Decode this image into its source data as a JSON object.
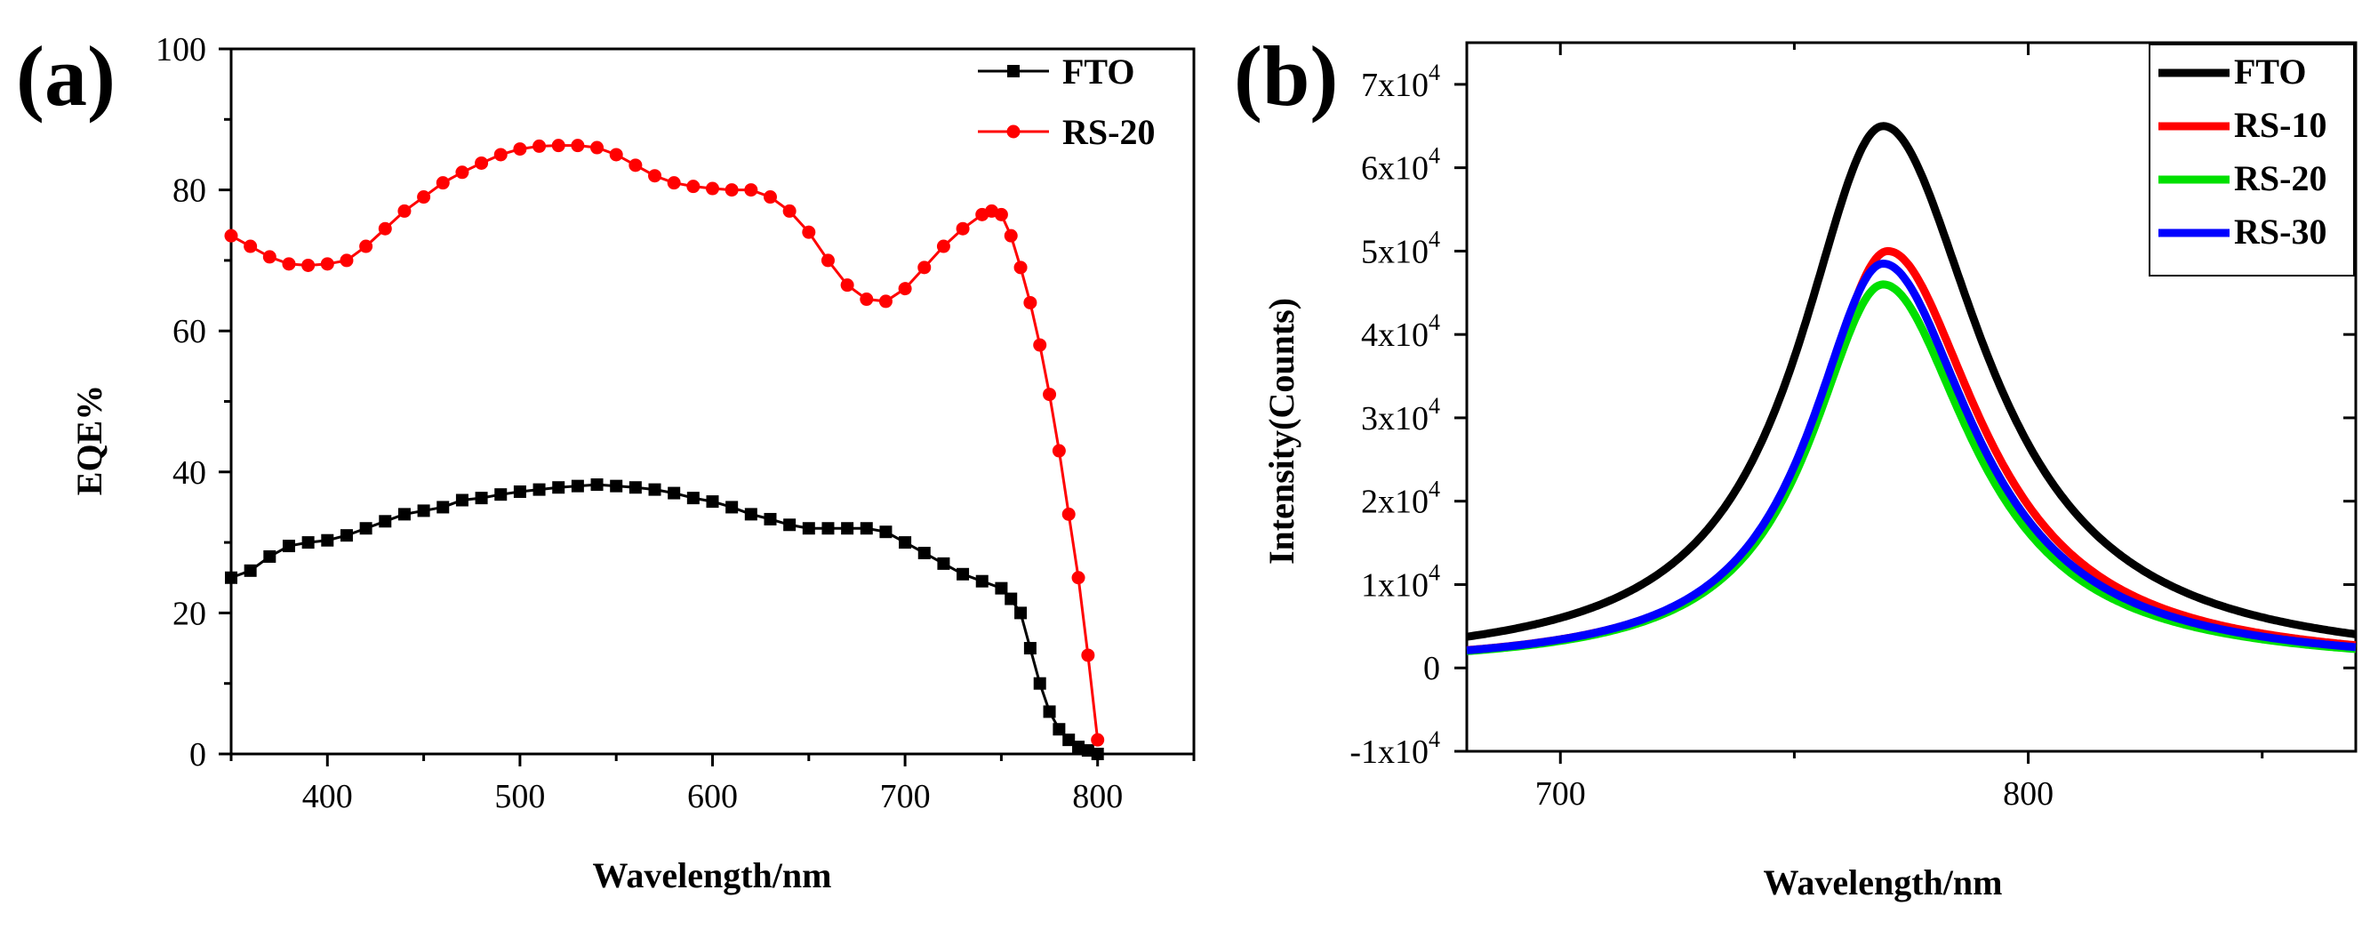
{
  "chart_data": [
    {
      "panel_label": "(a)",
      "type": "line",
      "xlabel": "Wavelength/nm",
      "ylabel": "EQE%",
      "xlim": [
        350,
        850
      ],
      "ylim": [
        0,
        100
      ],
      "xticks": [
        400,
        500,
        600,
        700,
        800
      ],
      "yticks": [
        0,
        20,
        40,
        60,
        80,
        100
      ],
      "tick_labels_x": [
        "400",
        "500",
        "600",
        "700",
        "800"
      ],
      "tick_labels_y": [
        "0",
        "20",
        "40",
        "60",
        "80",
        "100"
      ],
      "legend_position": "top-right",
      "series": [
        {
          "name": "FTO",
          "color": "#000000",
          "marker": "square",
          "x": [
            350,
            360,
            370,
            380,
            390,
            400,
            410,
            420,
            430,
            440,
            450,
            460,
            470,
            480,
            490,
            500,
            510,
            520,
            530,
            540,
            550,
            560,
            570,
            580,
            590,
            600,
            610,
            620,
            630,
            640,
            650,
            660,
            670,
            680,
            690,
            700,
            710,
            720,
            730,
            740,
            750,
            755,
            760,
            765,
            770,
            775,
            780,
            785,
            790,
            795,
            800
          ],
          "y": [
            25,
            26,
            28,
            29.5,
            30,
            30.3,
            31,
            32,
            33,
            34,
            34.5,
            35,
            36,
            36.3,
            36.8,
            37.2,
            37.5,
            37.8,
            38,
            38.2,
            38,
            37.8,
            37.5,
            37,
            36.3,
            35.8,
            35,
            34,
            33.3,
            32.5,
            32,
            32,
            32,
            32,
            31.5,
            30,
            28.5,
            27,
            25.5,
            24.5,
            23.5,
            22,
            20,
            15,
            10,
            6,
            3.5,
            2,
            1,
            0.5,
            0
          ]
        },
        {
          "name": "RS-20",
          "color": "#ff0000",
          "marker": "circle",
          "x": [
            350,
            360,
            370,
            380,
            390,
            400,
            410,
            420,
            430,
            440,
            450,
            460,
            470,
            480,
            490,
            500,
            510,
            520,
            530,
            540,
            550,
            560,
            570,
            580,
            590,
            600,
            610,
            620,
            630,
            640,
            650,
            660,
            670,
            680,
            690,
            700,
            710,
            720,
            730,
            740,
            745,
            750,
            755,
            760,
            765,
            770,
            775,
            780,
            785,
            790,
            795,
            800
          ],
          "y": [
            73.5,
            72,
            70.5,
            69.5,
            69.3,
            69.5,
            70,
            72,
            74.5,
            77,
            79,
            81,
            82.5,
            83.8,
            85,
            85.8,
            86.2,
            86.3,
            86.3,
            86,
            85,
            83.5,
            82,
            81,
            80.5,
            80.2,
            80,
            80,
            79,
            77,
            74,
            70,
            66.5,
            64.5,
            64.2,
            66,
            69,
            72,
            74.5,
            76.5,
            77,
            76.5,
            73.5,
            69,
            64,
            58,
            51,
            43,
            34,
            25,
            14,
            2
          ]
        }
      ]
    },
    {
      "panel_label": "(b)",
      "type": "line",
      "xlabel": "Wavelength/nm",
      "ylabel": "Intensity(Counts)",
      "xlim": [
        680,
        870
      ],
      "ylim": [
        -10000,
        75000
      ],
      "xticks": [
        700,
        800
      ],
      "yticks": [
        -10000,
        0,
        10000,
        20000,
        30000,
        40000,
        50000,
        60000,
        70000
      ],
      "tick_labels_x": [
        "700",
        "800"
      ],
      "tick_labels_y": [
        "-1x10⁴",
        "0",
        "1x10⁴",
        "2x10⁴",
        "3x10⁴",
        "4x10⁴",
        "5x10⁴",
        "6x10⁴",
        "7x10⁴"
      ],
      "legend_position": "top-right",
      "series": [
        {
          "name": "FTO",
          "color": "#000000",
          "peak_x": 769,
          "peak_y": 65000
        },
        {
          "name": "RS-10",
          "color": "#ff0000",
          "peak_x": 770,
          "peak_y": 50000
        },
        {
          "name": "RS-20",
          "color": "#00e000",
          "peak_x": 769,
          "peak_y": 46000
        },
        {
          "name": "RS-30",
          "color": "#0000ff",
          "peak_x": 769,
          "peak_y": 48500
        }
      ]
    }
  ]
}
